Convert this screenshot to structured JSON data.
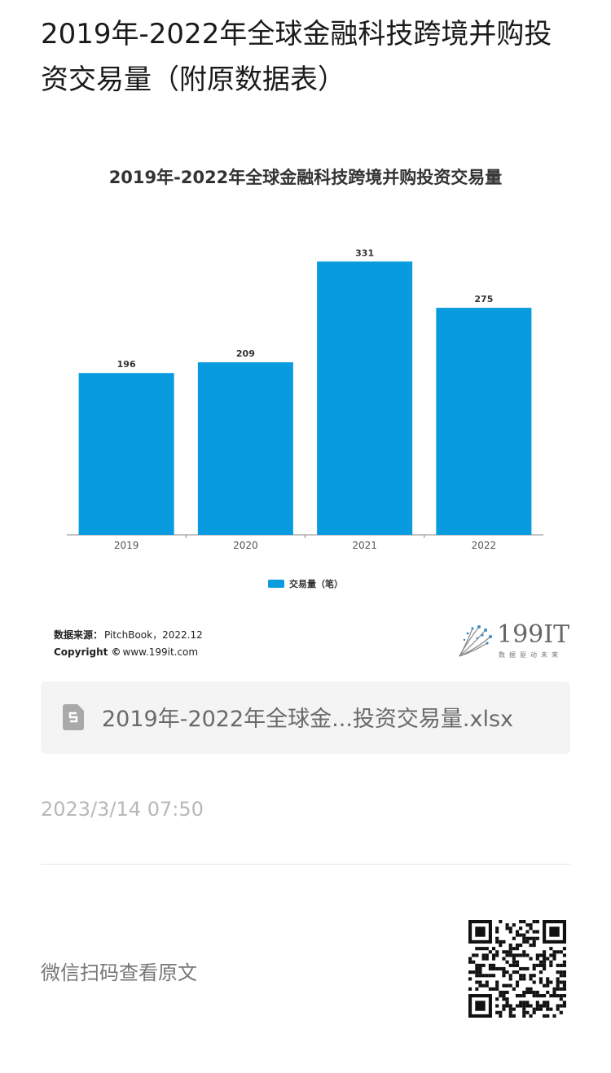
{
  "page": {
    "title": "2019年-2022年全球金融科技跨境并购投资交易量（附原数据表）"
  },
  "chart_data": {
    "type": "bar",
    "title": "2019年-2022年全球金融科技跨境并购投资交易量",
    "categories": [
      "2019",
      "2020",
      "2021",
      "2022"
    ],
    "series": [
      {
        "name": "交易量（笔）",
        "values": [
          196,
          209,
          331,
          275
        ]
      }
    ],
    "ylim": [
      0,
      350
    ],
    "xlabel": "",
    "ylabel": "",
    "data_labels": [
      "196",
      "209",
      "331",
      "275"
    ],
    "legend_position": "bottom",
    "grid": false,
    "color": "#089be0"
  },
  "source": {
    "source_label": "数据来源：",
    "source_value": "PitchBook，2022.12",
    "copyright_label": "Copyright ©",
    "copyright_value": "www.199it.com"
  },
  "logo": {
    "text": "199IT",
    "subtitle": "数据驱动未来"
  },
  "attachment": {
    "file_name": "2019年-2022年全球金...投资交易量.xlsx",
    "icon": "spreadsheet-file-icon"
  },
  "post": {
    "timestamp": "2023/3/14 07:50",
    "wechat_prompt": "微信扫码查看原文"
  }
}
